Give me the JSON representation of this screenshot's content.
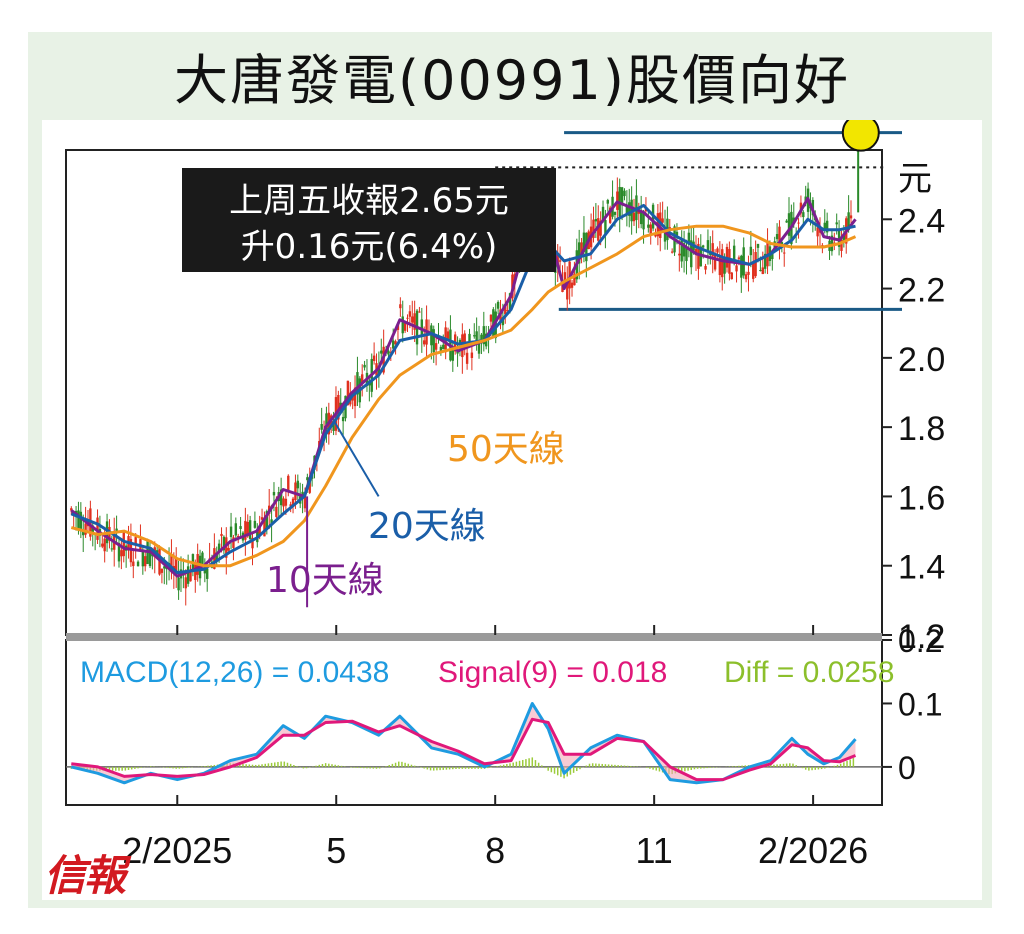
{
  "title": "大唐發電(00991)股價向好",
  "logo_text": "信報",
  "chart_data": [
    {
      "type": "line",
      "unit_label": "元",
      "ylim": [
        1.2,
        2.6
      ],
      "yticks": [
        "1.2",
        "1.4",
        "1.6",
        "1.8",
        "2.0",
        "2.2",
        "2.4"
      ],
      "xticks": [
        {
          "label": "2/2025",
          "month": 3
        },
        {
          "label": "5",
          "month": 6
        },
        {
          "label": "8",
          "month": 9
        },
        {
          "label": "11",
          "month": 12
        },
        {
          "label": "2/2026",
          "month": 15
        }
      ],
      "annotation": {
        "line1": "上周五收報2.65元",
        "line2": "升0.16元(6.4%)"
      },
      "resistance": 2.65,
      "support": 2.14,
      "last_close": 2.65,
      "prev_close_dotted": 2.55,
      "series": [
        {
          "name": "10天線",
          "color": "#7b1f8e",
          "label_color": "#7b1f8e",
          "values": [
            [
              1.0,
              1.56
            ],
            [
              1.5,
              1.5
            ],
            [
              2.0,
              1.45
            ],
            [
              2.5,
              1.44
            ],
            [
              3.0,
              1.37
            ],
            [
              3.5,
              1.4
            ],
            [
              4.0,
              1.47
            ],
            [
              4.5,
              1.5
            ],
            [
              5.0,
              1.62
            ],
            [
              5.4,
              1.6
            ],
            [
              5.8,
              1.8
            ],
            [
              6.3,
              1.9
            ],
            [
              6.8,
              1.97
            ],
            [
              7.2,
              2.11
            ],
            [
              7.8,
              2.07
            ],
            [
              8.3,
              2.02
            ],
            [
              8.8,
              2.05
            ],
            [
              9.3,
              2.18
            ],
            [
              9.7,
              2.41
            ],
            [
              10.0,
              2.37
            ],
            [
              10.3,
              2.2
            ],
            [
              10.8,
              2.35
            ],
            [
              11.3,
              2.45
            ],
            [
              11.8,
              2.42
            ],
            [
              12.3,
              2.35
            ],
            [
              12.8,
              2.3
            ],
            [
              13.3,
              2.28
            ],
            [
              13.8,
              2.27
            ],
            [
              14.2,
              2.3
            ],
            [
              14.6,
              2.38
            ],
            [
              14.9,
              2.46
            ],
            [
              15.2,
              2.35
            ],
            [
              15.5,
              2.34
            ],
            [
              15.8,
              2.4
            ]
          ]
        },
        {
          "name": "20天線",
          "color": "#1a5ea8",
          "label_color": "#1a5ea8",
          "values": [
            [
              1.0,
              1.55
            ],
            [
              1.5,
              1.52
            ],
            [
              2.0,
              1.47
            ],
            [
              2.5,
              1.45
            ],
            [
              3.0,
              1.38
            ],
            [
              3.5,
              1.39
            ],
            [
              4.0,
              1.44
            ],
            [
              4.5,
              1.48
            ],
            [
              5.0,
              1.55
            ],
            [
              5.4,
              1.6
            ],
            [
              5.8,
              1.78
            ],
            [
              6.3,
              1.89
            ],
            [
              6.8,
              1.95
            ],
            [
              7.2,
              2.05
            ],
            [
              7.8,
              2.07
            ],
            [
              8.3,
              2.04
            ],
            [
              8.8,
              2.05
            ],
            [
              9.3,
              2.14
            ],
            [
              9.7,
              2.29
            ],
            [
              10.0,
              2.33
            ],
            [
              10.3,
              2.28
            ],
            [
              10.8,
              2.3
            ],
            [
              11.3,
              2.4
            ],
            [
              11.8,
              2.44
            ],
            [
              12.3,
              2.36
            ],
            [
              12.8,
              2.32
            ],
            [
              13.3,
              2.29
            ],
            [
              13.8,
              2.27
            ],
            [
              14.2,
              2.3
            ],
            [
              14.6,
              2.34
            ],
            [
              14.9,
              2.4
            ],
            [
              15.2,
              2.37
            ],
            [
              15.5,
              2.37
            ],
            [
              15.8,
              2.38
            ]
          ]
        },
        {
          "name": "50天線",
          "color": "#f0961e",
          "label_color": "#f0961e",
          "values": [
            [
              1.0,
              1.51
            ],
            [
              1.5,
              1.49
            ],
            [
              2.0,
              1.5
            ],
            [
              2.5,
              1.47
            ],
            [
              3.0,
              1.42
            ],
            [
              3.5,
              1.4
            ],
            [
              4.0,
              1.4
            ],
            [
              4.5,
              1.43
            ],
            [
              5.0,
              1.47
            ],
            [
              5.4,
              1.53
            ],
            [
              5.8,
              1.63
            ],
            [
              6.3,
              1.77
            ],
            [
              6.8,
              1.88
            ],
            [
              7.2,
              1.95
            ],
            [
              7.8,
              2.01
            ],
            [
              8.3,
              2.03
            ],
            [
              8.8,
              2.05
            ],
            [
              9.3,
              2.08
            ],
            [
              9.7,
              2.14
            ],
            [
              10.0,
              2.19
            ],
            [
              10.3,
              2.22
            ],
            [
              10.8,
              2.26
            ],
            [
              11.3,
              2.3
            ],
            [
              11.8,
              2.35
            ],
            [
              12.3,
              2.37
            ],
            [
              12.8,
              2.38
            ],
            [
              13.3,
              2.38
            ],
            [
              13.8,
              2.36
            ],
            [
              14.2,
              2.33
            ],
            [
              14.6,
              2.32
            ],
            [
              14.9,
              2.32
            ],
            [
              15.2,
              2.32
            ],
            [
              15.5,
              2.33
            ],
            [
              15.8,
              2.35
            ]
          ]
        }
      ]
    },
    {
      "type": "line",
      "ylim": [
        -0.06,
        0.2
      ],
      "yticks": [
        "0",
        "0.1",
        "0.2"
      ],
      "legend": [
        {
          "text": "MACD(12,26) = 0.0438",
          "color": "#1e9be0"
        },
        {
          "text": "Signal(9) = 0.018",
          "color": "#e0187a"
        },
        {
          "text": "Diff = 0.0258",
          "color": "#8cbf2b"
        }
      ],
      "series": [
        {
          "name": "MACD",
          "color": "#1e9be0",
          "values": [
            [
              1.0,
              0.0
            ],
            [
              1.5,
              -0.01
            ],
            [
              2.0,
              -0.025
            ],
            [
              2.5,
              -0.01
            ],
            [
              3.0,
              -0.02
            ],
            [
              3.5,
              -0.01
            ],
            [
              4.0,
              0.01
            ],
            [
              4.5,
              0.02
            ],
            [
              5.0,
              0.065
            ],
            [
              5.4,
              0.045
            ],
            [
              5.8,
              0.08
            ],
            [
              6.3,
              0.07
            ],
            [
              6.8,
              0.05
            ],
            [
              7.2,
              0.08
            ],
            [
              7.8,
              0.03
            ],
            [
              8.3,
              0.02
            ],
            [
              8.8,
              0.0
            ],
            [
              9.3,
              0.02
            ],
            [
              9.7,
              0.1
            ],
            [
              10.0,
              0.06
            ],
            [
              10.3,
              -0.01
            ],
            [
              10.8,
              0.03
            ],
            [
              11.3,
              0.05
            ],
            [
              11.8,
              0.04
            ],
            [
              12.3,
              -0.02
            ],
            [
              12.8,
              -0.025
            ],
            [
              13.3,
              -0.02
            ],
            [
              13.8,
              0.0
            ],
            [
              14.2,
              0.01
            ],
            [
              14.6,
              0.045
            ],
            [
              14.9,
              0.02
            ],
            [
              15.2,
              0.005
            ],
            [
              15.5,
              0.015
            ],
            [
              15.8,
              0.0438
            ]
          ]
        },
        {
          "name": "Signal",
          "color": "#e0187a",
          "values": [
            [
              1.0,
              0.005
            ],
            [
              1.5,
              0.0
            ],
            [
              2.0,
              -0.015
            ],
            [
              2.5,
              -0.012
            ],
            [
              3.0,
              -0.015
            ],
            [
              3.5,
              -0.012
            ],
            [
              4.0,
              0.0
            ],
            [
              4.5,
              0.015
            ],
            [
              5.0,
              0.05
            ],
            [
              5.4,
              0.05
            ],
            [
              5.8,
              0.07
            ],
            [
              6.3,
              0.072
            ],
            [
              6.8,
              0.055
            ],
            [
              7.2,
              0.065
            ],
            [
              7.8,
              0.04
            ],
            [
              8.3,
              0.025
            ],
            [
              8.8,
              0.005
            ],
            [
              9.3,
              0.01
            ],
            [
              9.7,
              0.075
            ],
            [
              10.0,
              0.07
            ],
            [
              10.3,
              0.02
            ],
            [
              10.8,
              0.02
            ],
            [
              11.3,
              0.045
            ],
            [
              11.8,
              0.04
            ],
            [
              12.3,
              0.0
            ],
            [
              12.8,
              -0.02
            ],
            [
              13.3,
              -0.02
            ],
            [
              13.8,
              -0.005
            ],
            [
              14.2,
              0.005
            ],
            [
              14.6,
              0.035
            ],
            [
              14.9,
              0.03
            ],
            [
              15.2,
              0.01
            ],
            [
              15.5,
              0.008
            ],
            [
              15.8,
              0.018
            ]
          ]
        }
      ]
    }
  ]
}
